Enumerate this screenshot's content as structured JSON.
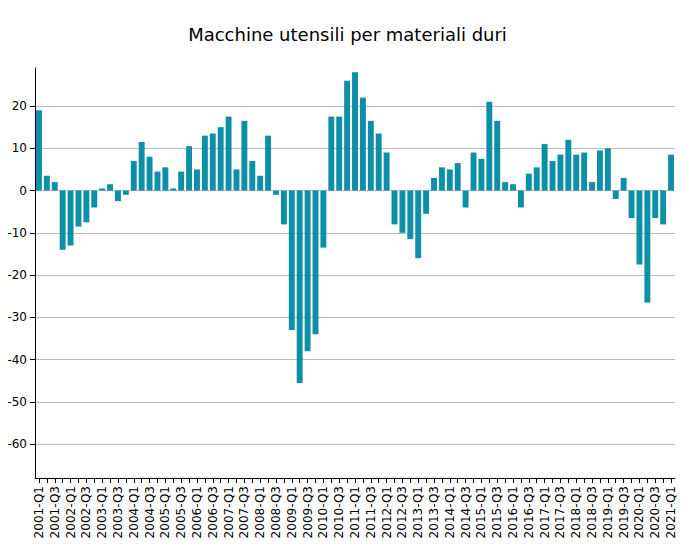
{
  "chart_data": {
    "type": "bar",
    "title": "Macchine utensili per materiali duri",
    "categories": [
      "2001-Q1",
      null,
      "2001-Q3",
      null,
      "2002-Q1",
      null,
      "2002-Q3",
      null,
      "2003-Q1",
      null,
      "2003-Q3",
      null,
      "2004-Q1",
      null,
      "2004-Q3",
      null,
      "2005-Q1",
      null,
      "2005-Q3",
      null,
      "2006-Q1",
      null,
      "2006-Q3",
      null,
      "2007-Q1",
      null,
      "2007-Q3",
      null,
      "2008-Q1",
      null,
      "2008-Q3",
      null,
      "2009-Q1",
      null,
      "2009-Q3",
      null,
      "2010-Q1",
      null,
      "2010-Q3",
      null,
      "2011-Q1",
      null,
      "2011-Q3",
      null,
      "2012-Q1",
      null,
      "2012-Q3",
      null,
      "2013-Q1",
      null,
      "2013-Q3",
      null,
      "2014-Q1",
      null,
      "2014-Q3",
      null,
      "2015-Q1",
      null,
      "2015-Q3",
      null,
      "2016-Q1",
      null,
      "2016-Q3",
      null,
      "2017-Q1",
      null,
      "2017-Q3",
      null,
      "2018-Q1",
      null,
      "2018-Q3",
      null,
      "2019-Q1",
      null,
      "2019-Q3",
      null,
      "2020-Q1",
      null,
      "2020-Q3",
      null,
      "2021-Q1"
    ],
    "values": [
      19,
      3.5,
      2,
      -14,
      -13,
      -8.5,
      -7.5,
      -4,
      0.5,
      1.5,
      -2.5,
      -1,
      7,
      11.5,
      8,
      4.5,
      5.5,
      0.5,
      4.5,
      10.5,
      5,
      13,
      13.5,
      15,
      17.5,
      5,
      16.5,
      7,
      3.5,
      13,
      -1,
      -8,
      -33,
      -45.5,
      -38,
      -34,
      -13.5,
      17.5,
      17.5,
      26,
      28,
      22,
      16.5,
      13.5,
      9,
      -8,
      -10,
      -11.5,
      -16,
      -5.5,
      3,
      5.5,
      5,
      6.5,
      -4,
      9,
      7.5,
      21,
      16.5,
      2,
      1.5,
      -4,
      4,
      5.5,
      11,
      7,
      8.5,
      12,
      8.5,
      9,
      2,
      9.5,
      10,
      -2,
      3,
      -6.5,
      -17.5,
      -26.5,
      -6.5,
      -8,
      8.5
    ],
    "color": "#0e8fa8",
    "ylim": [
      -68,
      29
    ],
    "yticks": [
      -60,
      -50,
      -40,
      -30,
      -20,
      -10,
      0,
      10,
      20
    ],
    "grid": true
  }
}
